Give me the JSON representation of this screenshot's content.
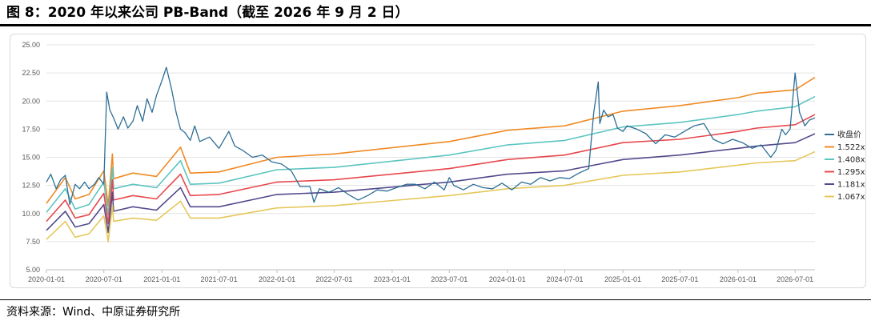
{
  "header": {
    "title": "图 8：2020 年以来公司 PB-Band（截至 2026 年 9 月 2 日）"
  },
  "footer": {
    "source": "资料来源：Wind、中原证券研究所"
  },
  "chart_data": {
    "type": "line",
    "title": "",
    "xlabel": "",
    "ylabel": "",
    "ylim": [
      5.0,
      25.0
    ],
    "y_ticks": [
      5.0,
      7.5,
      10.0,
      12.5,
      15.0,
      17.5,
      20.0,
      22.5,
      25.0
    ],
    "y_tick_labels": [
      "5.00",
      "7.50",
      "10.00",
      "12.50",
      "15.00",
      "17.50",
      "20.00",
      "22.50",
      "25.00"
    ],
    "x_tick_labels": [
      "2020-01-01",
      "2020-07-01",
      "2021-01-01",
      "2021-07-01",
      "2022-01-01",
      "2022-07-01",
      "2023-01-01",
      "2023-07-01",
      "2024-01-01",
      "2024-07-01",
      "2025-01-01",
      "2025-07-01",
      "2026-01-01",
      "2026-07-01"
    ],
    "x_range": [
      "2020-01-01",
      "2026-09-02"
    ],
    "grid": "horizontal",
    "legend_position": "right",
    "colors": {
      "close": "#2e6f95",
      "b1522": "#f08a24",
      "b1408": "#5cc5c0",
      "b1295": "#e8474c",
      "b1181": "#524a8c",
      "b1067": "#e5c85c"
    },
    "series": [
      {
        "name": "收盘价",
        "key": "close",
        "x": [
          "2020-01-01",
          "2020-01-15",
          "2020-02-01",
          "2020-02-15",
          "2020-03-01",
          "2020-03-15",
          "2020-04-01",
          "2020-04-15",
          "2020-05-01",
          "2020-05-15",
          "2020-06-01",
          "2020-06-15",
          "2020-07-01",
          "2020-07-10",
          "2020-07-20",
          "2020-08-01",
          "2020-08-15",
          "2020-09-01",
          "2020-09-15",
          "2020-10-01",
          "2020-10-15",
          "2020-11-01",
          "2020-11-15",
          "2020-12-01",
          "2020-12-15",
          "2021-01-01",
          "2021-01-15",
          "2021-02-01",
          "2021-02-15",
          "2021-03-01",
          "2021-03-15",
          "2021-04-01",
          "2021-04-15",
          "2021-05-01",
          "2021-06-01",
          "2021-07-01",
          "2021-08-01",
          "2021-08-20",
          "2021-09-15",
          "2021-10-15",
          "2021-11-15",
          "2021-12-15",
          "2022-01-15",
          "2022-02-15",
          "2022-03-15",
          "2022-04-15",
          "2022-04-28",
          "2022-05-15",
          "2022-06-15",
          "2022-07-15",
          "2022-08-15",
          "2022-09-15",
          "2022-10-15",
          "2022-11-15",
          "2022-12-15",
          "2023-01-15",
          "2023-02-15",
          "2023-03-15",
          "2023-04-15",
          "2023-05-15",
          "2023-06-15",
          "2023-07-01",
          "2023-07-15",
          "2023-08-15",
          "2023-09-15",
          "2023-10-15",
          "2023-11-15",
          "2023-12-15",
          "2024-01-15",
          "2024-02-15",
          "2024-03-15",
          "2024-04-15",
          "2024-05-15",
          "2024-06-15",
          "2024-07-15",
          "2024-08-15",
          "2024-09-15",
          "2024-10-01",
          "2024-10-15",
          "2024-10-20",
          "2024-11-01",
          "2024-11-15",
          "2024-12-01",
          "2024-12-15",
          "2025-01-01",
          "2025-01-15",
          "2025-02-15",
          "2025-03-15",
          "2025-04-15",
          "2025-05-15",
          "2025-06-15",
          "2025-07-15",
          "2025-08-15",
          "2025-09-15",
          "2025-10-15",
          "2025-11-15",
          "2025-12-15",
          "2026-01-15",
          "2026-02-15",
          "2026-03-15",
          "2026-04-15",
          "2026-05-01",
          "2026-05-20",
          "2026-06-01",
          "2026-06-15",
          "2026-07-01",
          "2026-07-15",
          "2026-08-01",
          "2026-08-15",
          "2026-09-02"
        ],
        "values": [
          12.8,
          13.5,
          12.2,
          13.0,
          13.4,
          10.8,
          12.6,
          12.2,
          12.8,
          12.2,
          12.6,
          13.2,
          12.6,
          20.8,
          19.2,
          18.5,
          17.5,
          18.6,
          17.6,
          18.2,
          19.6,
          18.2,
          20.2,
          19.0,
          20.5,
          21.8,
          23.0,
          21.0,
          19.0,
          17.5,
          17.2,
          16.5,
          17.8,
          16.4,
          16.8,
          15.8,
          17.3,
          16.0,
          15.6,
          15.0,
          15.2,
          14.6,
          14.4,
          13.8,
          12.4,
          12.4,
          11.0,
          12.2,
          11.9,
          12.3,
          11.7,
          11.2,
          11.6,
          12.1,
          12.0,
          12.3,
          12.6,
          12.6,
          12.2,
          12.8,
          12.1,
          13.2,
          12.5,
          12.1,
          12.6,
          12.3,
          12.2,
          12.7,
          12.1,
          12.8,
          12.6,
          13.2,
          12.9,
          13.2,
          13.1,
          13.6,
          14.0,
          19.0,
          21.7,
          18.0,
          19.2,
          18.6,
          18.8,
          17.6,
          17.3,
          17.8,
          17.5,
          17.1,
          16.2,
          17.0,
          16.8,
          17.3,
          17.8,
          18.0,
          16.6,
          16.2,
          16.6,
          16.3,
          15.8,
          16.1,
          15.0,
          15.6,
          17.5,
          17.0,
          17.5,
          22.5,
          19.0,
          17.8,
          18.3,
          18.5
        ]
      },
      {
        "name": "1.522x",
        "key": "b1522",
        "x": [
          "2020-01-01",
          "2020-03-01",
          "2020-04-01",
          "2020-05-15",
          "2020-07-01",
          "2020-07-15",
          "2020-07-28",
          "2020-08-01",
          "2020-10-01",
          "2020-12-15",
          "2021-03-01",
          "2021-04-01",
          "2021-07-01",
          "2022-01-01",
          "2022-07-01",
          "2023-07-01",
          "2024-01-01",
          "2024-07-01",
          "2025-01-01",
          "2025-07-01",
          "2026-01-01",
          "2026-03-01",
          "2026-07-01",
          "2026-09-02"
        ],
        "values": [
          10.9,
          13.2,
          11.3,
          11.7,
          13.8,
          10.7,
          15.3,
          13.1,
          13.6,
          13.3,
          15.9,
          13.6,
          13.7,
          15.0,
          15.3,
          16.4,
          17.4,
          17.8,
          19.1,
          19.6,
          20.3,
          20.7,
          21.0,
          22.1
        ]
      },
      {
        "name": "1.408x",
        "key": "b1408",
        "x": [
          "2020-01-01",
          "2020-03-01",
          "2020-04-01",
          "2020-05-15",
          "2020-07-01",
          "2020-07-15",
          "2020-07-28",
          "2020-08-01",
          "2020-10-01",
          "2020-12-15",
          "2021-03-01",
          "2021-04-01",
          "2021-07-01",
          "2022-01-01",
          "2022-07-01",
          "2023-07-01",
          "2024-01-01",
          "2024-07-01",
          "2025-01-01",
          "2025-07-01",
          "2026-01-01",
          "2026-03-01",
          "2026-07-01",
          "2026-09-02"
        ],
        "values": [
          10.1,
          12.2,
          10.4,
          10.8,
          12.8,
          9.9,
          14.1,
          12.2,
          12.6,
          12.3,
          14.7,
          12.6,
          12.7,
          13.9,
          14.1,
          15.2,
          16.1,
          16.5,
          17.7,
          18.1,
          18.8,
          19.1,
          19.5,
          20.4
        ]
      },
      {
        "name": "1.295x",
        "key": "b1295",
        "x": [
          "2020-01-01",
          "2020-03-01",
          "2020-04-01",
          "2020-05-15",
          "2020-07-01",
          "2020-07-15",
          "2020-07-28",
          "2020-08-01",
          "2020-10-01",
          "2020-12-15",
          "2021-03-01",
          "2021-04-01",
          "2021-07-01",
          "2022-01-01",
          "2022-07-01",
          "2023-07-01",
          "2024-01-01",
          "2024-07-01",
          "2025-01-01",
          "2025-07-01",
          "2026-01-01",
          "2026-03-01",
          "2026-07-01",
          "2026-09-02"
        ],
        "values": [
          9.3,
          11.2,
          9.6,
          9.9,
          11.8,
          9.1,
          13.0,
          11.2,
          11.6,
          11.3,
          13.5,
          11.6,
          11.7,
          12.8,
          13.0,
          14.0,
          14.8,
          15.2,
          16.3,
          16.6,
          17.3,
          17.6,
          17.9,
          18.8
        ]
      },
      {
        "name": "1.181x",
        "key": "b1181",
        "x": [
          "2020-01-01",
          "2020-03-01",
          "2020-04-01",
          "2020-05-15",
          "2020-07-01",
          "2020-07-15",
          "2020-07-28",
          "2020-08-01",
          "2020-10-01",
          "2020-12-15",
          "2021-03-01",
          "2021-04-01",
          "2021-07-01",
          "2022-01-01",
          "2022-07-01",
          "2023-07-01",
          "2024-01-01",
          "2024-07-01",
          "2025-01-01",
          "2025-07-01",
          "2026-01-01",
          "2026-03-01",
          "2026-07-01",
          "2026-09-02"
        ],
        "values": [
          8.5,
          10.2,
          8.8,
          9.1,
          10.8,
          8.3,
          11.9,
          10.2,
          10.6,
          10.3,
          12.3,
          10.6,
          10.6,
          11.7,
          11.9,
          12.8,
          13.5,
          13.8,
          14.8,
          15.2,
          15.8,
          16.0,
          16.3,
          17.1
        ]
      },
      {
        "name": "1.067x",
        "key": "b1067",
        "x": [
          "2020-01-01",
          "2020-03-01",
          "2020-04-01",
          "2020-05-15",
          "2020-07-01",
          "2020-07-15",
          "2020-07-28",
          "2020-08-01",
          "2020-10-01",
          "2020-12-15",
          "2021-03-01",
          "2021-04-01",
          "2021-07-01",
          "2022-01-01",
          "2022-07-01",
          "2023-07-01",
          "2024-01-01",
          "2024-07-01",
          "2025-01-01",
          "2025-07-01",
          "2026-01-01",
          "2026-03-01",
          "2026-07-01",
          "2026-09-02"
        ],
        "values": [
          7.7,
          9.3,
          7.9,
          8.2,
          9.8,
          7.5,
          10.7,
          9.3,
          9.6,
          9.4,
          11.1,
          9.6,
          9.6,
          10.5,
          10.7,
          11.6,
          12.2,
          12.5,
          13.4,
          13.7,
          14.3,
          14.5,
          14.7,
          15.5
        ]
      }
    ]
  }
}
